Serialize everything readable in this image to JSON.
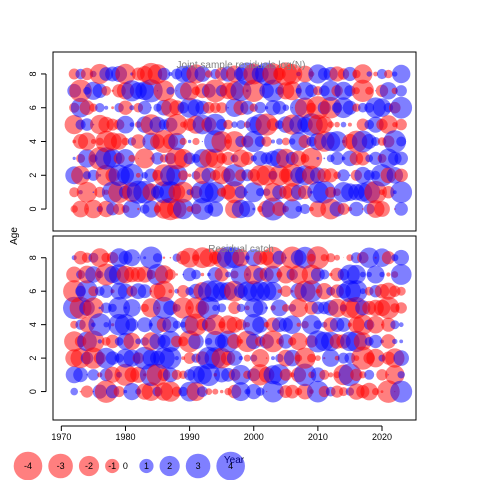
{
  "colors": {
    "positive": "#0000ff",
    "negative": "#ff0000",
    "frame": "#000000",
    "panel_title": "#808080"
  },
  "chart_data": {
    "type": "scatter",
    "subtype": "bubble",
    "ylabel": "Age",
    "xlabel": "Year",
    "x_ticks": [
      1970,
      1980,
      1990,
      2000,
      2010,
      2020
    ],
    "xlim": [
      1968.7,
      2025.3
    ],
    "bubble_years": [
      1972,
      2023
    ],
    "panels": [
      {
        "title": "Joint sample residuals log(N)",
        "ylim": [
          -1.3,
          9.3
        ],
        "y_ticks": [
          0,
          2,
          4,
          6,
          8
        ],
        "ages": [
          0,
          1,
          2,
          3,
          4,
          5,
          6,
          7,
          8
        ],
        "seed": 11
      },
      {
        "title": "Residual catch",
        "ylim": [
          -1.7,
          9.3
        ],
        "y_ticks": [
          0,
          2,
          4,
          6,
          8
        ],
        "ages": [
          0,
          1,
          2,
          3,
          4,
          5,
          6,
          7,
          8
        ],
        "seed": 29
      }
    ],
    "legend": {
      "labels": [
        "-4",
        "-3",
        "-2",
        "-1",
        "0",
        "1",
        "2",
        "3",
        "4"
      ],
      "values": [
        -4,
        -3,
        -2,
        -1,
        0,
        1,
        2,
        3,
        4
      ]
    }
  }
}
